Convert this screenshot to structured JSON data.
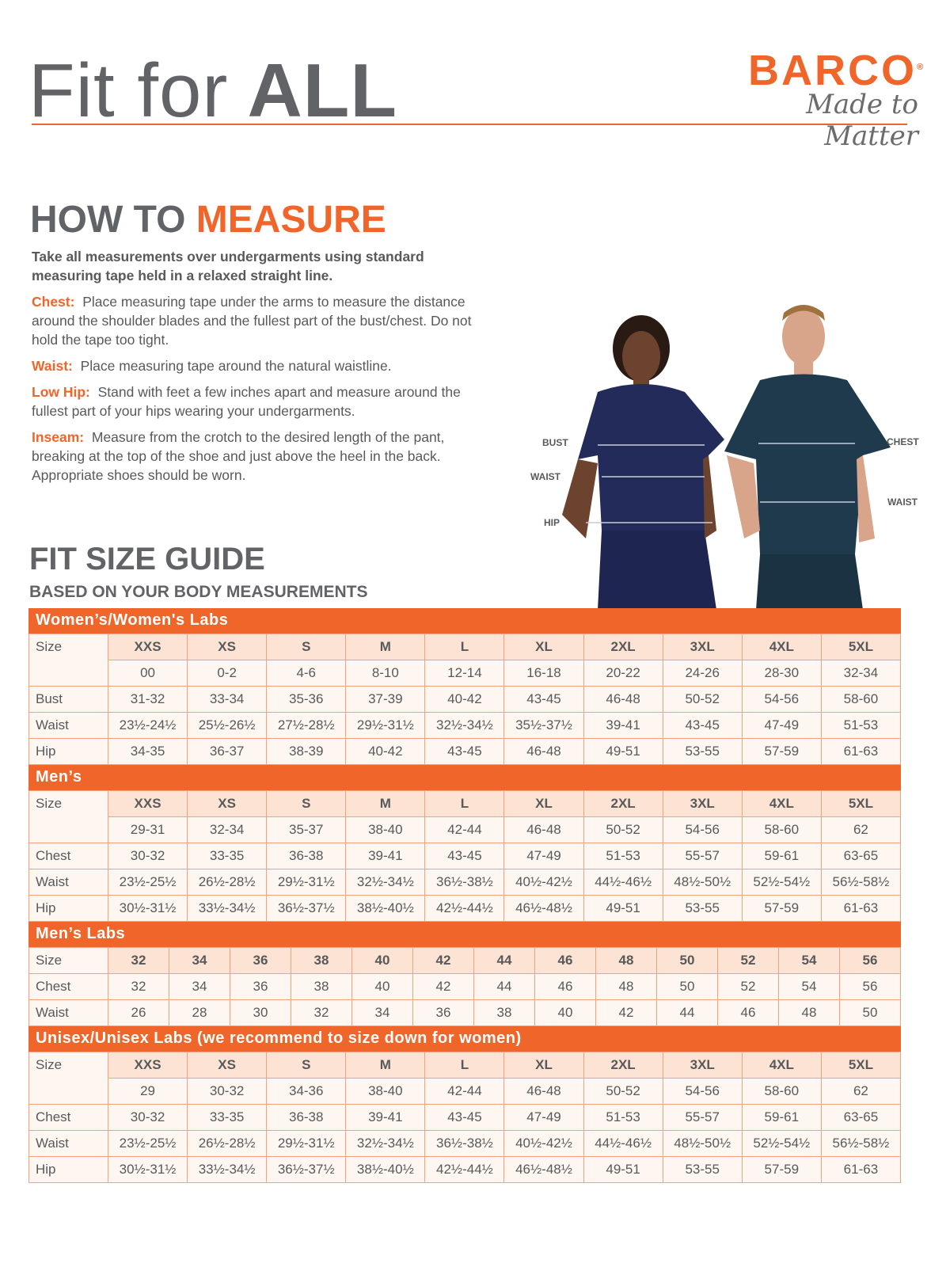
{
  "header": {
    "title_regular": "Fit for",
    "title_bold": "ALL",
    "brand": "BARCO",
    "registered": "®",
    "tagline": "Made to Matter"
  },
  "measure": {
    "heading_gray": "HOW TO",
    "heading_accent": "MEASURE",
    "lead": "Take all measurements over undergarments using standard measuring tape held in a relaxed straight line.",
    "items": [
      {
        "term": "Chest:",
        "text": "Place measuring tape under the arms to measure the distance around the shoulder blades and the fullest part of the bust/chest. Do not hold the tape too tight."
      },
      {
        "term": "Waist:",
        "text": "Place measuring tape around the natural waistline."
      },
      {
        "term": "Low Hip:",
        "text": "Stand with feet a few inches apart and measure around the fullest part of your hips wearing your undergarments."
      },
      {
        "term": "Inseam:",
        "text": "Measure from the crotch to the desired length of the pant, breaking at the top of the shoe and just above the heel in the back. Appropriate shoes should be worn."
      }
    ],
    "photo_labels": {
      "bust": "BUST",
      "waist_w": "WAIST",
      "hip": "HIP",
      "chest": "CHEST",
      "waist_m": "WAIST"
    }
  },
  "guide": {
    "title": "FIT SIZE GUIDE",
    "subtitle": "BASED ON YOUR BODY MEASUREMENTS"
  },
  "colors": {
    "accent": "#f0652a",
    "text": "#58595b",
    "size_row": "#fde3d4",
    "cell": "#fef6f1"
  },
  "sections": [
    {
      "title": "Women’s/Women's Labs",
      "rows": [
        {
          "label": "Size",
          "size": true,
          "cells": [
            "XXS",
            "XS",
            "S",
            "M",
            "L",
            "XL",
            "2XL",
            "3XL",
            "4XL",
            "5XL"
          ]
        },
        {
          "label": "",
          "cells": [
            "00",
            "0-2",
            "4-6",
            "8-10",
            "12-14",
            "16-18",
            "20-22",
            "24-26",
            "28-30",
            "32-34"
          ]
        },
        {
          "label": "Bust",
          "cells": [
            "31-32",
            "33-34",
            "35-36",
            "37-39",
            "40-42",
            "43-45",
            "46-48",
            "50-52",
            "54-56",
            "58-60"
          ]
        },
        {
          "label": "Waist",
          "cells": [
            "23½-24½",
            "25½-26½",
            "27½-28½",
            "29½-31½",
            "32½-34½",
            "35½-37½",
            "39-41",
            "43-45",
            "47-49",
            "51-53"
          ]
        },
        {
          "label": "Hip",
          "cells": [
            "34-35",
            "36-37",
            "38-39",
            "40-42",
            "43-45",
            "46-48",
            "49-51",
            "53-55",
            "57-59",
            "61-63"
          ]
        }
      ]
    },
    {
      "title": "Men’s",
      "rows": [
        {
          "label": "Size",
          "size": true,
          "cells": [
            "XXS",
            "XS",
            "S",
            "M",
            "L",
            "XL",
            "2XL",
            "3XL",
            "4XL",
            "5XL"
          ]
        },
        {
          "label": "",
          "cells": [
            "29-31",
            "32-34",
            "35-37",
            "38-40",
            "42-44",
            "46-48",
            "50-52",
            "54-56",
            "58-60",
            "62"
          ]
        },
        {
          "label": "Chest",
          "cells": [
            "30-32",
            "33-35",
            "36-38",
            "39-41",
            "43-45",
            "47-49",
            "51-53",
            "55-57",
            "59-61",
            "63-65"
          ]
        },
        {
          "label": "Waist",
          "cells": [
            "23½-25½",
            "26½-28½",
            "29½-31½",
            "32½-34½",
            "36½-38½",
            "40½-42½",
            "44½-46½",
            "48½-50½",
            "52½-54½",
            "56½-58½"
          ]
        },
        {
          "label": "Hip",
          "cells": [
            "30½-31½",
            "33½-34½",
            "36½-37½",
            "38½-40½",
            "42½-44½",
            "46½-48½",
            "49-51",
            "53-55",
            "57-59",
            "61-63"
          ]
        }
      ]
    },
    {
      "title": "Men’s Labs",
      "rows": [
        {
          "label": "Size",
          "size": true,
          "cells": [
            "32",
            "34",
            "36",
            "38",
            "40",
            "42",
            "44",
            "46",
            "48",
            "50",
            "52",
            "54",
            "56"
          ]
        },
        {
          "label": "Chest",
          "cells": [
            "32",
            "34",
            "36",
            "38",
            "40",
            "42",
            "44",
            "46",
            "48",
            "50",
            "52",
            "54",
            "56"
          ]
        },
        {
          "label": "Waist",
          "cells": [
            "26",
            "28",
            "30",
            "32",
            "34",
            "36",
            "38",
            "40",
            "42",
            "44",
            "46",
            "48",
            "50"
          ]
        }
      ]
    },
    {
      "title": "Unisex/Unisex Labs (we recommend to size down for women)",
      "rows": [
        {
          "label": "Size",
          "size": true,
          "cells": [
            "XXS",
            "XS",
            "S",
            "M",
            "L",
            "XL",
            "2XL",
            "3XL",
            "4XL",
            "5XL"
          ]
        },
        {
          "label": "",
          "cells": [
            "29",
            "30-32",
            "34-36",
            "38-40",
            "42-44",
            "46-48",
            "50-52",
            "54-56",
            "58-60",
            "62"
          ]
        },
        {
          "label": "Chest",
          "cells": [
            "30-32",
            "33-35",
            "36-38",
            "39-41",
            "43-45",
            "47-49",
            "51-53",
            "55-57",
            "59-61",
            "63-65"
          ]
        },
        {
          "label": "Waist",
          "cells": [
            "23½-25½",
            "26½-28½",
            "29½-31½",
            "32½-34½",
            "36½-38½",
            "40½-42½",
            "44½-46½",
            "48½-50½",
            "52½-54½",
            "56½-58½"
          ]
        },
        {
          "label": "Hip",
          "cells": [
            "30½-31½",
            "33½-34½",
            "36½-37½",
            "38½-40½",
            "42½-44½",
            "46½-48½",
            "49-51",
            "53-55",
            "57-59",
            "61-63"
          ]
        }
      ]
    }
  ]
}
